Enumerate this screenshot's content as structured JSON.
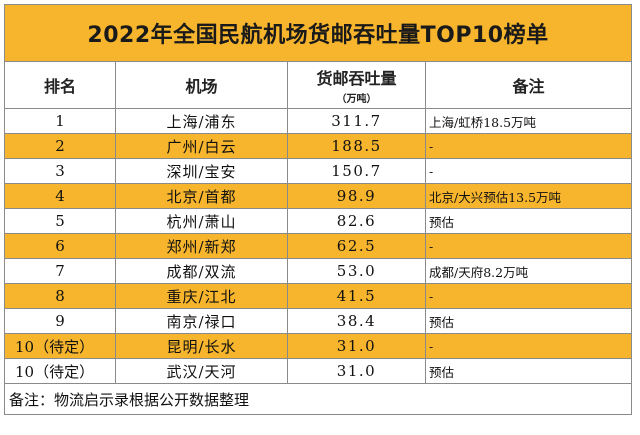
{
  "title": "2022年全国民航机场货邮吞吐量TOP10榜单",
  "headers": {
    "rank": "排名",
    "airport": "机场",
    "volume": "货邮吞吐量",
    "volume_unit": "（万吨）",
    "note": "备注"
  },
  "rows": [
    {
      "rank": "1",
      "airport": "上海/浦东",
      "volume": "311.7",
      "note": "上海/虹桥18.5万吨"
    },
    {
      "rank": "2",
      "airport": "广州/白云",
      "volume": "188.5",
      "note": "-"
    },
    {
      "rank": "3",
      "airport": "深圳/宝安",
      "volume": "150.7",
      "note": "-"
    },
    {
      "rank": "4",
      "airport": "北京/首都",
      "volume": "98.9",
      "note": "北京/大兴预估13.5万吨"
    },
    {
      "rank": "5",
      "airport": "杭州/萧山",
      "volume": "82.6",
      "note": "预估"
    },
    {
      "rank": "6",
      "airport": "郑州/新郑",
      "volume": "62.5",
      "note": "-"
    },
    {
      "rank": "7",
      "airport": "成都/双流",
      "volume": "53.0",
      "note": "成都/天府8.2万吨"
    },
    {
      "rank": "8",
      "airport": "重庆/江北",
      "volume": "41.5",
      "note": "-"
    },
    {
      "rank": "9",
      "airport": "南京/禄口",
      "volume": "38.4",
      "note": "预估"
    },
    {
      "rank": "10（待定）",
      "airport": "昆明/长水",
      "volume": "31.0",
      "note": "-"
    },
    {
      "rank": "10（待定）",
      "airport": "武汉/天河",
      "volume": "31.0",
      "note": "预估"
    }
  ],
  "footer": "备注：物流启示录根据公开数据整理",
  "colors": {
    "accent": "#f6b52c",
    "border": "#8a8a8a"
  }
}
